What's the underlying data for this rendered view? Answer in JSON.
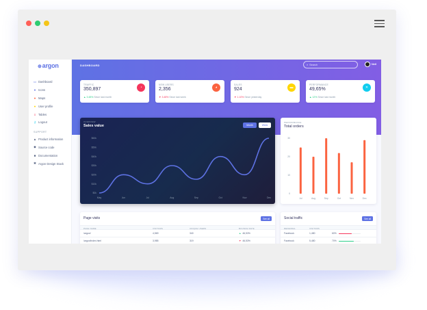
{
  "browser": {
    "dots": [
      "#ff5f57",
      "#2ecc71",
      "#f5c518"
    ],
    "menu_icon": "hamburger-icon"
  },
  "sidebar": {
    "brand": "argon",
    "items": [
      {
        "label": "Dashboard",
        "icon": "tv-icon",
        "color": "#5e72e4"
      },
      {
        "label": "Icons",
        "icon": "planet-icon",
        "color": "#5e72e4"
      },
      {
        "label": "Maps",
        "icon": "pin-icon",
        "color": "#fb6340"
      },
      {
        "label": "User profile",
        "icon": "user-icon",
        "color": "#ffd600"
      },
      {
        "label": "Tables",
        "icon": "list-icon",
        "color": "#f5365c"
      },
      {
        "label": "Logout",
        "icon": "key-icon",
        "color": "#11cdef"
      }
    ],
    "section_heading": "SUPPORT",
    "support_items": [
      {
        "label": "Product information",
        "icon": "spaceship-icon"
      },
      {
        "label": "Source code",
        "icon": "palette-icon"
      },
      {
        "label": "Documentation",
        "icon": "ui-icon"
      },
      {
        "label": "Argon Design Stack",
        "icon": "atom-icon"
      }
    ]
  },
  "header": {
    "title": "DASHBOARD",
    "search_placeholder": "Search",
    "user_name": "Neil"
  },
  "stats": [
    {
      "label": "TRAFFIC",
      "value": "350,897",
      "change": "3.48%",
      "direction": "up",
      "period": "Since last month",
      "icon": "chart-pie-icon",
      "color": "#f5365c"
    },
    {
      "label": "NEW USERS",
      "value": "2,356",
      "change": "3.48%",
      "direction": "down",
      "period": "Since last week",
      "icon": "chart-bar-icon",
      "color": "#fb6340"
    },
    {
      "label": "SALES",
      "value": "924",
      "change": "1.10%",
      "direction": "down",
      "period": "Since yesterday",
      "icon": "users-icon",
      "color": "#ffd600"
    },
    {
      "label": "PERFORMANCE",
      "value": "49,65%",
      "change": "12%",
      "direction": "up",
      "period": "Since last month",
      "icon": "percent-icon",
      "color": "#11cdef"
    }
  ],
  "sales_card": {
    "overline": "OVERVIEW",
    "title": "Sales value",
    "tab_month": "Month",
    "tab_week": "Week"
  },
  "orders_card": {
    "overline": "PERFORMANCE",
    "title": "Total orders"
  },
  "chart_data": [
    {
      "type": "line",
      "x": [
        "May",
        "Jun",
        "Jul",
        "Aug",
        "Sep",
        "Oct",
        "Nov",
        "Dec"
      ],
      "y_ticks": [
        "$0k",
        "$10k",
        "$20k",
        "$30k",
        "$40k",
        "$50k",
        "$60k"
      ],
      "ylim": [
        0,
        60
      ],
      "series": [
        {
          "values": [
            0,
            20,
            10,
            30,
            15,
            40,
            20,
            60
          ]
        }
      ],
      "color": "#5e72e4"
    },
    {
      "type": "bar",
      "categories": [
        "Jul",
        "Aug",
        "Sep",
        "Oct",
        "Nov",
        "Dec"
      ],
      "y_ticks": [
        "0",
        "10",
        "20",
        "30"
      ],
      "ylim": [
        0,
        30
      ],
      "values": [
        25,
        20,
        30,
        22,
        17,
        29
      ],
      "color": "#fb6340"
    }
  ],
  "page_visits": {
    "title": "Page visits",
    "see_all": "See all",
    "columns": [
      "PAGE NAME",
      "VISITORS",
      "UNIQUE USERS",
      "BOUNCE RATE"
    ],
    "rows": [
      {
        "page": "/argon/",
        "visitors": "4,569",
        "unique": "340",
        "bounce": "46,53%",
        "direction": "up"
      },
      {
        "page": "/argon/index.html",
        "visitors": "3,985",
        "unique": "319",
        "bounce": "46,53%",
        "direction": "down"
      }
    ]
  },
  "social_traffic": {
    "title": "Social traffic",
    "see_all": "See all",
    "columns": [
      "REFERRAL",
      "VISITORS"
    ],
    "rows": [
      {
        "referral": "Facebook",
        "visitors": "1,480",
        "percent": "60%",
        "progress": 0.6,
        "color": "#f5365c"
      },
      {
        "referral": "Facebook",
        "visitors": "5,480",
        "percent": "70%",
        "progress": 0.7,
        "color": "#2dce89"
      }
    ]
  }
}
